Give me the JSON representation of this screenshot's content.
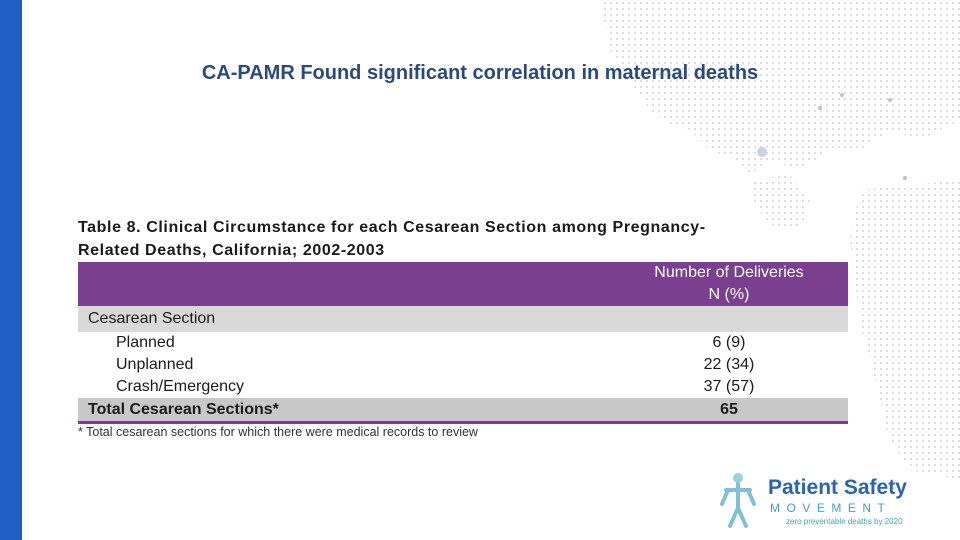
{
  "title": "CA-PAMR Found significant correlation in maternal deaths",
  "table": {
    "caption_line1": "Table 8. Clinical Circumstance for each Cesarean Section among Pregnancy-",
    "caption_line2": "Related Deaths, California; 2002-2003",
    "header_line1": "Number of Deliveries",
    "header_line2": "N (%)",
    "section_label": "Cesarean Section",
    "rows": [
      {
        "label": "Planned",
        "value": "6 (9)"
      },
      {
        "label": "Unplanned",
        "value": "22 (34)"
      },
      {
        "label": "Crash/Emergency",
        "value": "37 (57)"
      }
    ],
    "total_label": "Total Cesarean Sections*",
    "total_value": "65",
    "footnote": "* Total cesarean sections for which there were medical records to review"
  },
  "logo": {
    "line1": "Patient Safety",
    "line2": "MOVEMENT",
    "line3": "zero preventable deaths by 2020",
    "icon": "human-figure-icon"
  },
  "colors": {
    "left_bar": "#1f5fc4",
    "title": "#2b4a7c",
    "table_header": "#7a3f8f",
    "section_row": "#d9d9d9",
    "total_row": "#c8c8c8",
    "logo_primary": "#2a63b5",
    "logo_secondary": "#4a9fc2"
  }
}
